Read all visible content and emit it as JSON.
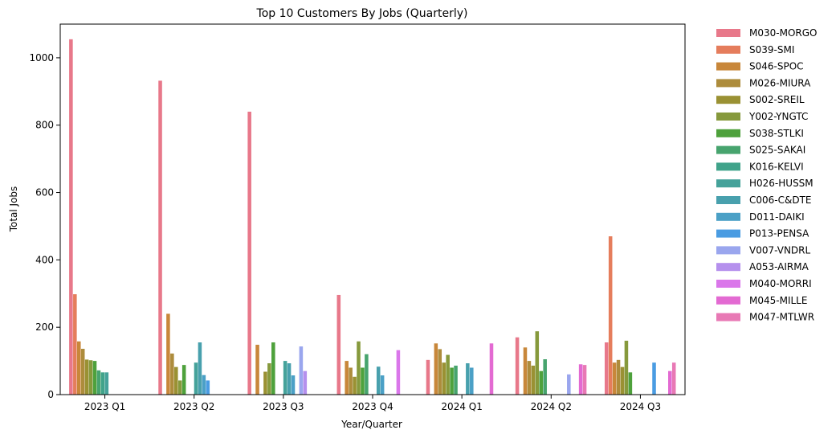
{
  "chart_data": {
    "type": "bar",
    "title": "Top 10 Customers By Jobs (Quarterly)",
    "xlabel": "Year/Quarter",
    "ylabel": "Total Jobs",
    "ylim": [
      0,
      1100
    ],
    "yticks": [
      0,
      200,
      400,
      600,
      800,
      1000
    ],
    "grid": false,
    "legend_position": "outside-right",
    "categories": [
      "2023 Q1",
      "2023 Q2",
      "2023 Q3",
      "2023 Q4",
      "2024 Q1",
      "2024 Q2",
      "2024 Q3"
    ],
    "series": [
      {
        "name": "M030-MORGO",
        "color": "#e8788a",
        "values": [
          1055,
          932,
          840,
          296,
          103,
          170,
          155
        ]
      },
      {
        "name": "S039-SMI",
        "color": "#e57d5c",
        "values": [
          298,
          null,
          null,
          null,
          null,
          null,
          470
        ]
      },
      {
        "name": "S046-SPOC",
        "color": "#c8873a",
        "values": [
          158,
          240,
          148,
          100,
          152,
          140,
          95
        ]
      },
      {
        "name": "M026-MIURA",
        "color": "#ad8c3c",
        "values": [
          136,
          122,
          null,
          80,
          135,
          100,
          103
        ]
      },
      {
        "name": "S002-SREIL",
        "color": "#9a9133",
        "values": [
          104,
          82,
          68,
          53,
          95,
          86,
          82
        ]
      },
      {
        "name": "Y002-YNGTC",
        "color": "#86993c",
        "values": [
          102,
          42,
          93,
          158,
          118,
          188,
          160
        ]
      },
      {
        "name": "S038-STLKI",
        "color": "#4ea13c",
        "values": [
          100,
          88,
          155,
          80,
          80,
          70,
          66
        ]
      },
      {
        "name": "S025-SAKAI",
        "color": "#47a46e",
        "values": [
          72,
          null,
          null,
          120,
          86,
          105,
          null
        ]
      },
      {
        "name": "K016-KELVI",
        "color": "#40a38a",
        "values": [
          66,
          null,
          null,
          null,
          null,
          null,
          null
        ]
      },
      {
        "name": "H026-HUSSM",
        "color": "#45a29a",
        "values": [
          66,
          95,
          100,
          null,
          null,
          null,
          null
        ]
      },
      {
        "name": "C006-C&DTE",
        "color": "#48a0ad",
        "values": [
          null,
          155,
          93,
          83,
          93,
          null,
          null
        ]
      },
      {
        "name": "D011-DAIKI",
        "color": "#4ba0c6",
        "values": [
          null,
          58,
          57,
          57,
          80,
          null,
          null
        ]
      },
      {
        "name": "P013-PENSA",
        "color": "#4a9ce2",
        "values": [
          null,
          42,
          null,
          null,
          null,
          null,
          95
        ]
      },
      {
        "name": "V007-VNDRL",
        "color": "#9aa6ee",
        "values": [
          null,
          null,
          143,
          null,
          null,
          60,
          null
        ]
      },
      {
        "name": "A053-AIRMA",
        "color": "#b590ed",
        "values": [
          null,
          null,
          70,
          null,
          null,
          null,
          null
        ]
      },
      {
        "name": "M040-MORRI",
        "color": "#da77ea",
        "values": [
          null,
          null,
          null,
          132,
          null,
          null,
          null
        ]
      },
      {
        "name": "M045-MILLE",
        "color": "#e36ad2",
        "values": [
          null,
          null,
          null,
          null,
          152,
          90,
          70
        ]
      },
      {
        "name": "M047-MTLWR",
        "color": "#e879b5",
        "values": [
          null,
          null,
          null,
          null,
          null,
          88,
          95
        ]
      }
    ]
  }
}
